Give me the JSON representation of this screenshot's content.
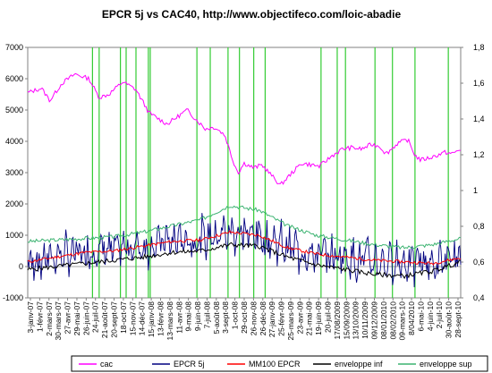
{
  "chart_data": {
    "type": "line",
    "title": "EPCR 5j vs CAC40, http://www.objectifeco.com/loic-abadie",
    "ylim": [
      -1000,
      7000
    ],
    "y_ticks": [
      7000,
      6000,
      5000,
      4000,
      3000,
      2000,
      1000,
      0,
      -1000
    ],
    "y2lim": [
      0.4,
      1.8
    ],
    "y2_ticks": [
      "1,8",
      "1,6",
      "1,4",
      "1,2",
      "1",
      "0,8",
      "0,6",
      "0,4"
    ],
    "grid": false,
    "legend_position": "bottom",
    "x_start": "2007-01-03",
    "x_end": "2010-09-28",
    "x_tick_labels": [
      "3-janv-07",
      "1-févr-07",
      "2-mars-07",
      "30-mars-07",
      "27-avr-07",
      "29-mai-07",
      "26-juin-07",
      "24-juil-07",
      "21-août-07",
      "20-sept-07",
      "18-oct-07",
      "15-nov-07",
      "14-déc-07",
      "15-janv-08",
      "13-févr-08",
      "13-mars-08",
      "11-avr-08",
      "9-mai-08",
      "9-juin-08",
      "7-juil-08",
      "5-août-08",
      "3-sept-08",
      "1-oct-08",
      "29-oct-08",
      "26-nov-08",
      "26-déc-08",
      "27-janv-09",
      "25-févr-09",
      "25-mars-09",
      "23-avr-09",
      "21-mai-09",
      "19-juin-09",
      "20-juil-09",
      "17/08/2009",
      "15/09/2009",
      "13/10/2009",
      "10/11/2009",
      "09/12/2009",
      "08/01/2010",
      "08/02/2010",
      "09-mars-10",
      "8/04/2010",
      "6-mai-10",
      "4-juin-10",
      "2-juil-10",
      "30-août-10",
      "28-sept-10"
    ],
    "series": [
      {
        "name": "cac",
        "color": "#ff00ff",
        "axis": "left",
        "x": [
          "2007-01-03",
          "2007-02-15",
          "2007-03-14",
          "2007-04-20",
          "2007-06-01",
          "2007-07-15",
          "2007-08-16",
          "2007-09-15",
          "2007-10-30",
          "2007-12-10",
          "2008-01-21",
          "2008-03-17",
          "2008-05-19",
          "2008-07-15",
          "2008-08-15",
          "2008-09-15",
          "2008-10-10",
          "2008-10-27",
          "2008-11-15",
          "2008-12-15",
          "2009-01-10",
          "2009-02-10",
          "2009-03-09",
          "2009-04-15",
          "2009-05-15",
          "2009-06-15",
          "2009-07-10",
          "2009-08-20",
          "2009-09-20",
          "2009-10-20",
          "2009-11-20",
          "2009-12-20",
          "2010-01-15",
          "2010-02-05",
          "2010-03-15",
          "2010-04-15",
          "2010-05-07",
          "2010-05-25",
          "2010-07-01",
          "2010-08-10",
          "2010-09-01",
          "2010-09-28"
        ],
        "y": [
          5550,
          5700,
          5300,
          5850,
          6150,
          6000,
          5400,
          5500,
          5900,
          5650,
          4900,
          4550,
          5000,
          4400,
          4450,
          4200,
          3400,
          3000,
          3300,
          3150,
          3250,
          2900,
          2600,
          3000,
          3300,
          3250,
          3200,
          3550,
          3750,
          3800,
          3750,
          3900,
          3850,
          3600,
          3950,
          4050,
          3550,
          3400,
          3500,
          3650,
          3600,
          3750
        ]
      },
      {
        "name": "EPCR 5j",
        "color": "#000080",
        "axis": "left"
      },
      {
        "name": "MM100 EPCR",
        "color": "#ff0000",
        "axis": "left",
        "x": [
          "2007-01-03",
          "2007-04-01",
          "2007-07-01",
          "2007-10-01",
          "2008-01-01",
          "2008-04-01",
          "2008-07-01",
          "2008-10-01",
          "2009-01-01",
          "2009-04-01",
          "2009-07-01",
          "2009-10-01",
          "2010-01-01",
          "2010-04-01",
          "2010-07-01",
          "2010-09-28"
        ],
        "y": [
          150,
          300,
          450,
          500,
          650,
          800,
          850,
          1100,
          1000,
          600,
          400,
          300,
          200,
          150,
          100,
          280
        ]
      },
      {
        "name": "enveloppe inf",
        "color": "#000000",
        "axis": "left",
        "x": [
          "2007-01-03",
          "2007-04-01",
          "2007-07-01",
          "2007-10-01",
          "2008-01-01",
          "2008-04-01",
          "2008-07-01",
          "2008-10-01",
          "2009-01-01",
          "2009-04-01",
          "2009-07-01",
          "2009-10-01",
          "2010-01-01",
          "2010-04-01",
          "2010-07-01",
          "2010-09-28"
        ],
        "y": [
          -100,
          0,
          100,
          200,
          300,
          450,
          500,
          700,
          650,
          300,
          50,
          -100,
          -250,
          -300,
          -150,
          150
        ]
      },
      {
        "name": "enveloppe sup",
        "color": "#3cb371",
        "axis": "left",
        "x": [
          "2007-01-03",
          "2007-04-01",
          "2007-07-01",
          "2007-10-01",
          "2008-01-01",
          "2008-04-01",
          "2008-07-01",
          "2008-10-01",
          "2009-01-01",
          "2009-04-01",
          "2009-07-01",
          "2009-10-01",
          "2010-01-01",
          "2010-04-01",
          "2010-07-01",
          "2010-09-28"
        ],
        "y": [
          800,
          850,
          900,
          950,
          1100,
          1300,
          1500,
          1950,
          1800,
          1300,
          1000,
          850,
          700,
          600,
          700,
          900
        ]
      }
    ],
    "signal_lines": {
      "color": "#33cc33",
      "dates": [
        "2007-07-26",
        "2007-08-16",
        "2007-10-22",
        "2007-11-09",
        "2007-12-10",
        "2008-01-18",
        "2008-01-24",
        "2008-06-19",
        "2008-07-31",
        "2008-09-25",
        "2008-10-31",
        "2008-12-15",
        "2009-01-20",
        "2009-07-15",
        "2009-09-04",
        "2009-09-30",
        "2010-01-01",
        "2010-02-25",
        "2010-05-07",
        "2010-08-20"
      ]
    }
  }
}
